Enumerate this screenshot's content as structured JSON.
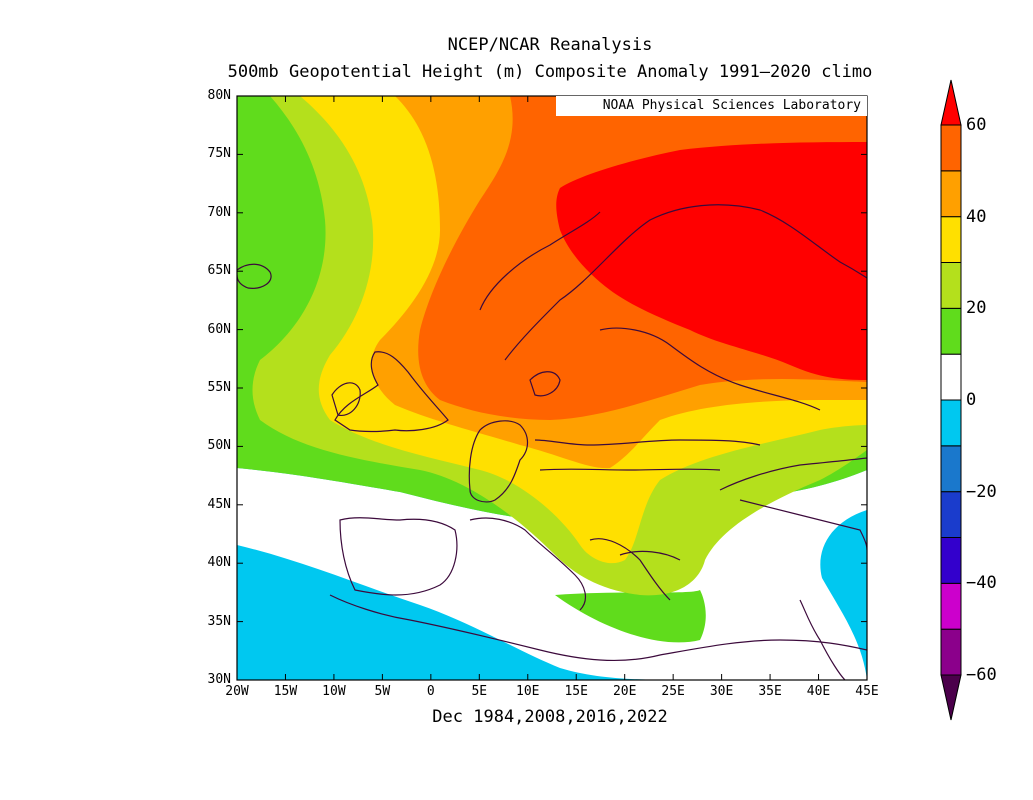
{
  "title": "NCEP/NCAR Reanalysis",
  "subtitle": "500mb Geopotential Height (m) Composite Anomaly 1991–2020 climo",
  "x_caption": "Dec 1984,2008,2016,2022",
  "credit": "NOAA Physical Sciences Laboratory",
  "lat_labels": [
    "80N",
    "75N",
    "70N",
    "65N",
    "60N",
    "55N",
    "50N",
    "45N",
    "40N",
    "35N",
    "30N"
  ],
  "lon_labels": [
    "20W",
    "15W",
    "10W",
    "5W",
    "0",
    "5E",
    "10E",
    "15E",
    "20E",
    "25E",
    "30E",
    "35E",
    "40E",
    "45E"
  ],
  "colorbar": {
    "labels": [
      "60",
      "40",
      "20",
      "0",
      "−20",
      "−40",
      "−60"
    ],
    "levels": [
      -60,
      -50,
      -40,
      -30,
      -20,
      -10,
      10,
      20,
      30,
      40,
      50,
      60
    ],
    "colors": [
      "#4b004b",
      "#8b008b",
      "#cc00cc",
      "#3300cc",
      "#1a3ccc",
      "#1a78cc",
      "#00c8f0",
      "#ffffff",
      "#60dc1c",
      "#b4e01c",
      "#ffe000",
      "#ffa000",
      "#ff6400",
      "#ff0000"
    ]
  },
  "region": {
    "lon_min": -20,
    "lon_max": 45,
    "lat_min": 30,
    "lat_max": 80
  },
  "anomaly_colors": {
    "negative_10_20": "#00c8f0",
    "neutral": "#ffffff",
    "positive_10_20": "#60dc1c",
    "positive_20_30": "#b4e01c",
    "positive_30_40": "#ffe000",
    "positive_40_50": "#ffa000",
    "positive_50_60": "#ff6400",
    "positive_60_plus": "#ff0000"
  },
  "coast_color": "#3c0a3c"
}
